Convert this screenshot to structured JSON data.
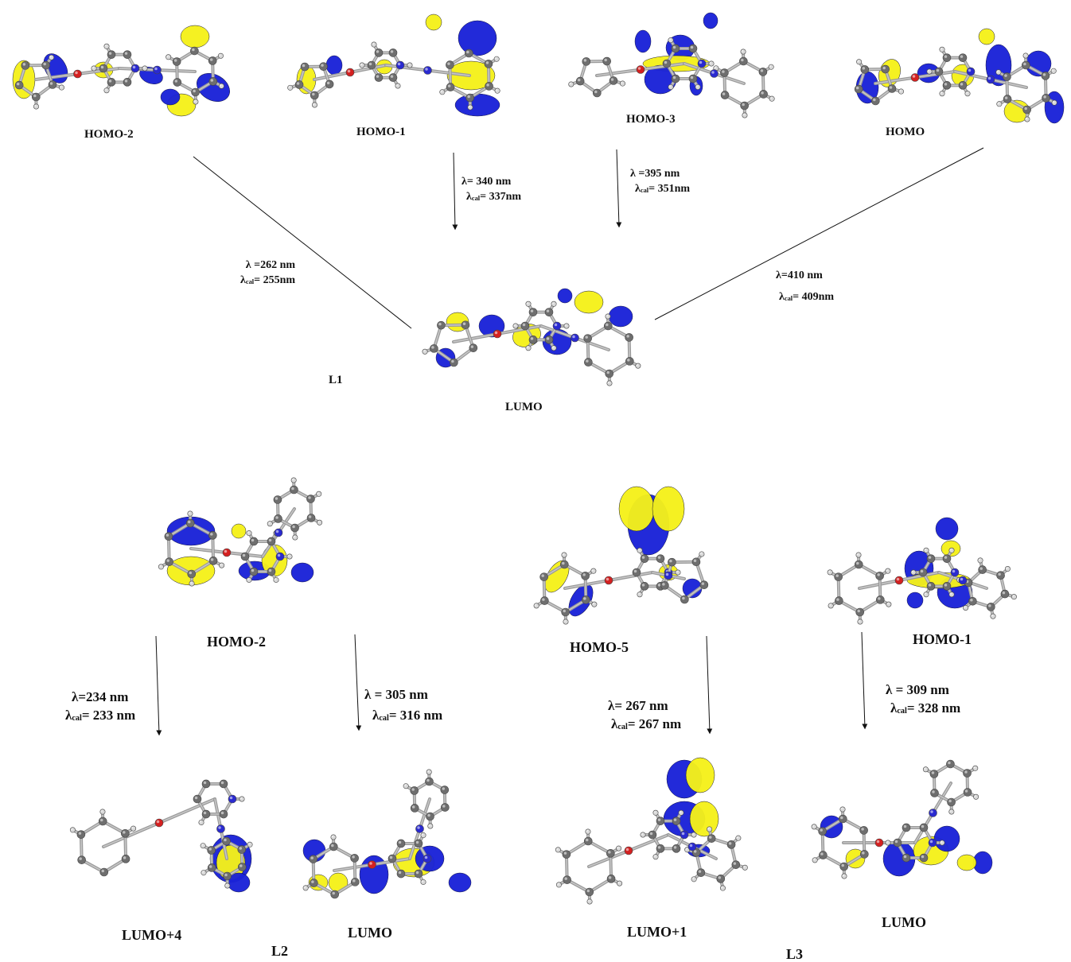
{
  "colors": {
    "lobe_pos": "#f5f11a",
    "lobe_neg": "#1a22d8",
    "carbon": "#6e6e6e",
    "hydrogen": "#d9d9d9",
    "nitrogen": "#2a2ad0",
    "oxygen": "#d42020",
    "sulfur": "#e8d820"
  },
  "figure": {
    "L1": {
      "ligand_label": "L1",
      "orbitals": {
        "homo2": "HOMO-2",
        "homo1": "HOMO-1",
        "homo3": "HOMO-3",
        "homo": "HOMO",
        "lumo": "LUMO"
      },
      "transitions": [
        {
          "exp": "λ =262 nm",
          "cal_sym": "λ",
          "cal_sub": "cal",
          "cal_val": "= 255nm"
        },
        {
          "exp": "λ= 340 nm",
          "cal_sym": "λ",
          "cal_sub": "cal",
          "cal_val": "= 337nm"
        },
        {
          "exp": "λ =395 nm",
          "cal_sym": "λ",
          "cal_sub": "cal",
          "cal_val": "= 351nm"
        },
        {
          "exp": "λ=410 nm",
          "cal_sym": "λ",
          "cal_sub": "cal",
          "cal_val": "= 409nm"
        }
      ]
    },
    "L2": {
      "ligand_label": "L2",
      "orbitals": {
        "homo2": "HOMO-2",
        "lumo4": "LUMO+4",
        "lumo": "LUMO"
      },
      "transitions": [
        {
          "exp": "λ=234 nm",
          "cal_sym": "λ",
          "cal_sub": "cal",
          "cal_val": "= 233 nm"
        },
        {
          "exp": "λ = 305 nm",
          "cal_sym": "λ",
          "cal_sub": "cal",
          "cal_val": "= 316 nm"
        }
      ]
    },
    "L3": {
      "ligand_label": "L3",
      "orbitals": {
        "homo5": "HOMO-5",
        "homo1": "HOMO-1",
        "lumo1": "LUMO+1",
        "lumo": "LUMO"
      },
      "transitions": [
        {
          "exp": "λ= 267 nm",
          "cal_sym": "λ",
          "cal_sub": "cal",
          "cal_val": "= 267 nm"
        },
        {
          "exp": "λ = 309 nm",
          "cal_sym": "λ",
          "cal_sub": "cal",
          "cal_val": "= 328 nm"
        }
      ]
    }
  }
}
